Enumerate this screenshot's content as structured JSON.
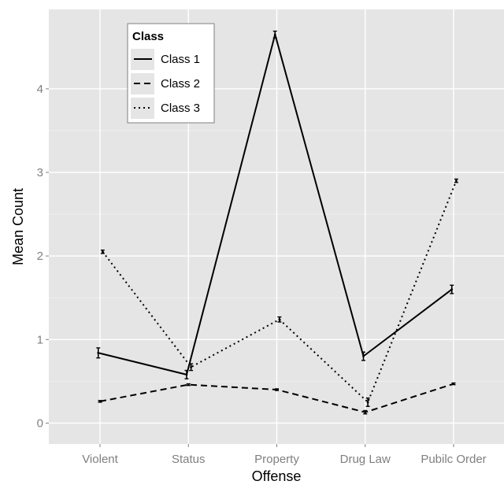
{
  "chart_data": {
    "type": "line",
    "xlabel": "Offense",
    "ylabel": "Mean Count",
    "categories": [
      "Violent",
      "Status",
      "Property",
      "Drug Law",
      "Pubilc Order"
    ],
    "ylim": [
      -0.25,
      4.95
    ],
    "yticks": [
      0,
      1,
      2,
      3,
      4
    ],
    "grid": true,
    "legend": {
      "title": "Class",
      "position": "top-left"
    },
    "colors": {
      "panel": "#e5e5e5",
      "grid": "#ffffff",
      "line": "#000000",
      "tick_label": "#7f7f7f"
    },
    "series": [
      {
        "name": "Class 1",
        "linestyle": "solid",
        "x_offset": -0.02,
        "values": [
          0.84,
          0.58,
          4.65,
          0.8,
          1.6
        ],
        "err": [
          0.06,
          0.05,
          0.04,
          0.05,
          0.05
        ]
      },
      {
        "name": "Class 2",
        "linestyle": "dashed",
        "x_offset": 0,
        "values": [
          0.26,
          0.46,
          0.4,
          0.13,
          0.47
        ],
        "err": [
          0.01,
          0.01,
          0.01,
          0.02,
          0.01
        ]
      },
      {
        "name": "Class 3",
        "linestyle": "dotted",
        "x_offset": 0.03,
        "values": [
          2.05,
          0.67,
          1.24,
          0.25,
          2.9
        ],
        "err": [
          0.02,
          0.04,
          0.03,
          0.05,
          0.02
        ]
      }
    ]
  }
}
